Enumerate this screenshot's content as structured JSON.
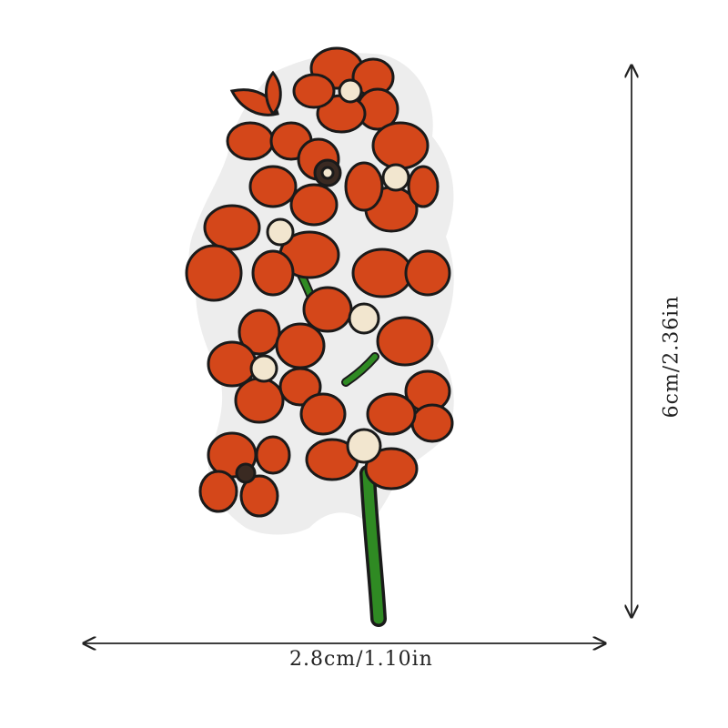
{
  "dimensions": {
    "width_text": "2.8cm/1.10in",
    "height_text": "6cm/2.36in"
  },
  "colors": {
    "petal": "#d4471a",
    "petal_light": "#e86a36",
    "outline": "#1a1a1a",
    "backing": "#eeeeee",
    "stem": "#2f8a23",
    "center": "#f2e6cf"
  },
  "icons": [
    "orange-flower-embroidered-patch",
    "double-arrow-horizontal",
    "double-arrow-vertical"
  ]
}
